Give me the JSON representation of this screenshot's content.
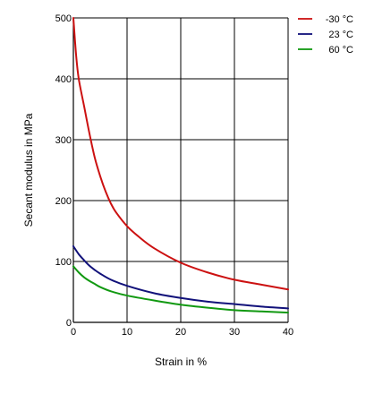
{
  "chart_data": {
    "type": "line",
    "title": "",
    "xlabel": "Strain in %",
    "ylabel": "Secant modulus in MPa",
    "xlim": [
      0,
      40
    ],
    "ylim": [
      0,
      500
    ],
    "xticks": [
      0,
      10,
      20,
      30,
      40
    ],
    "yticks": [
      0,
      100,
      200,
      300,
      400,
      500
    ],
    "grid": true,
    "legend_position": "top-right",
    "series": [
      {
        "name": "-30 °C",
        "color": "#cc1111",
        "x": [
          0,
          0.5,
          1,
          2,
          3,
          4,
          5,
          6,
          7,
          8,
          10,
          12,
          15,
          20,
          25,
          30,
          35,
          40
        ],
        "y": [
          500,
          440,
          400,
          355,
          310,
          270,
          240,
          215,
          195,
          180,
          158,
          142,
          122,
          98,
          82,
          70,
          62,
          54
        ]
      },
      {
        "name": "23 °C",
        "color": "#11117a",
        "x": [
          0,
          1,
          2,
          3,
          4,
          5,
          7,
          10,
          15,
          20,
          25,
          30,
          35,
          40
        ],
        "y": [
          125,
          112,
          102,
          93,
          86,
          80,
          70,
          60,
          48,
          40,
          34,
          30,
          26,
          23
        ]
      },
      {
        "name": "60 °C",
        "color": "#119911",
        "x": [
          0,
          1,
          2,
          3,
          4,
          5,
          7,
          10,
          15,
          20,
          25,
          30,
          35,
          40
        ],
        "y": [
          92,
          82,
          74,
          68,
          63,
          58,
          51,
          44,
          36,
          29,
          24,
          20,
          18,
          16
        ]
      }
    ]
  }
}
